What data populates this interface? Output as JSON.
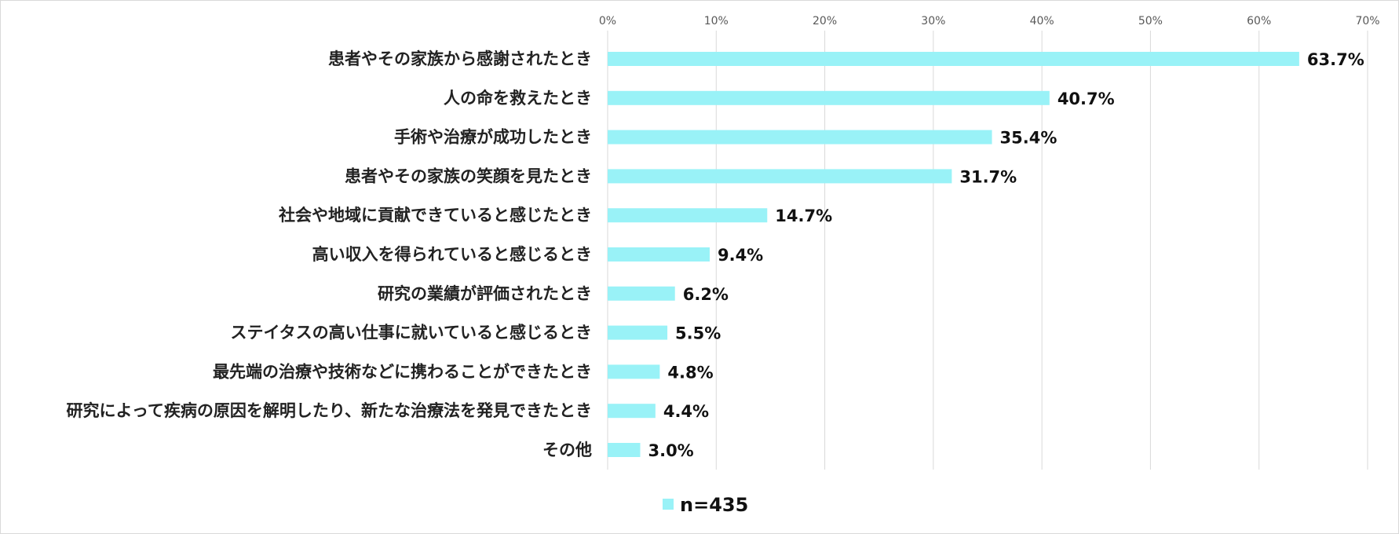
{
  "chart_data": {
    "type": "bar",
    "orientation": "horizontal",
    "title": "",
    "xlabel": "",
    "ylabel": "",
    "xlim": [
      0,
      70
    ],
    "tick_step": 10,
    "tick_labels": [
      "0%",
      "10%",
      "20%",
      "30%",
      "40%",
      "50%",
      "60%",
      "70%"
    ],
    "grid": true,
    "legend_position": "bottom",
    "categories": [
      "患者やその家族から感謝されたとき",
      "人の命を救えたとき",
      "手術や治療が成功したとき",
      "患者やその家族の笑顔を見たとき",
      "社会や地域に貢献できていると感じたとき",
      "高い収入を得られていると感じるとき",
      "研究の業績が評価されたとき",
      "ステイタスの高い仕事に就いていると感じるとき",
      "最先端の治療や技術などに携わることができたとき",
      "研究によって疾病の原因を解明したり、新たな治療法を発見できたとき",
      "その他"
    ],
    "series": [
      {
        "name": "n=435",
        "color": "#99f2f7",
        "values": [
          63.7,
          40.7,
          35.4,
          31.7,
          14.7,
          9.4,
          6.2,
          5.5,
          4.8,
          4.4,
          3.0
        ],
        "value_labels": [
          "63.7%",
          "40.7%",
          "35.4%",
          "31.7%",
          "14.7%",
          "9.4%",
          "6.2%",
          "5.5%",
          "4.8%",
          "4.4%",
          "3.0%"
        ]
      }
    ]
  }
}
